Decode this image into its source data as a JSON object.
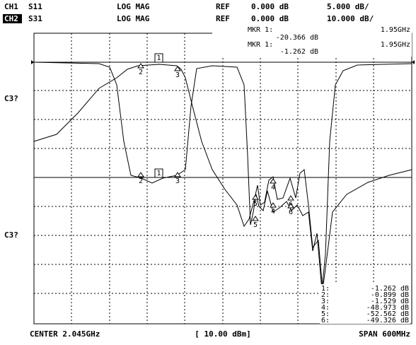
{
  "header": {
    "line1": {
      "channel": "CH1",
      "param": "S11",
      "format": "LOG MAG",
      "ref_label": "REF",
      "ref_value": "0.000 dB",
      "scale": "5.000 dB/"
    },
    "line2": {
      "channel": "CH2",
      "param": "S31",
      "format": "LOG MAG",
      "ref_label": "REF",
      "ref_value": "0.000 dB",
      "scale": "10.000 dB/"
    }
  },
  "marker_box": [
    {
      "label": "MKR 1:",
      "freq": "1.95GHz",
      "value": "-20.366 dB"
    },
    {
      "label": "MKR 1:",
      "freq": "1.95GHz",
      "value": "-1.262 dB"
    }
  ],
  "side_labels": [
    "C3?",
    "C3?"
  ],
  "trace_markers": [
    "1",
    "2",
    "3",
    "4",
    "5",
    "6",
    "1",
    "2",
    "3",
    "4",
    "5",
    "6"
  ],
  "marker_list": [
    {
      "num": "1:",
      "value": "-1.262 dB"
    },
    {
      "num": "2:",
      "value": "-0.899 dB"
    },
    {
      "num": "3:",
      "value": "-1.529 dB"
    },
    {
      "num": "4:",
      "value": "-48.973 dB"
    },
    {
      "num": "5:",
      "value": "-52.562 dB"
    },
    {
      "num": "6:",
      "value": "-49.326 dB"
    }
  ],
  "footer": {
    "center": "CENTER 2.045GHz",
    "power": "[ 10.00 dBm]",
    "span": "SPAN 600MHz"
  }
}
